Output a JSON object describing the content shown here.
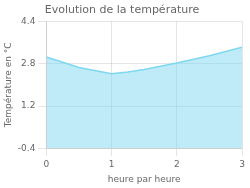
{
  "chart_data": {
    "type": "area",
    "title": "Evolution de la température",
    "xlabel": "heure par heure",
    "ylabel": "Température en °C",
    "x": [
      0,
      0.5,
      1,
      1.25,
      1.5,
      2,
      2.5,
      3
    ],
    "values": [
      3.05,
      2.65,
      2.42,
      2.48,
      2.58,
      2.82,
      3.1,
      3.42
    ],
    "color": "#7dd8f0",
    "xlim": [
      0,
      3
    ],
    "ylim": [
      -0.4,
      4.4
    ],
    "xticks": [
      0,
      1,
      2,
      3
    ],
    "yticks": [
      -0.4,
      1.2,
      2.8,
      4.4
    ],
    "grid": true
  }
}
